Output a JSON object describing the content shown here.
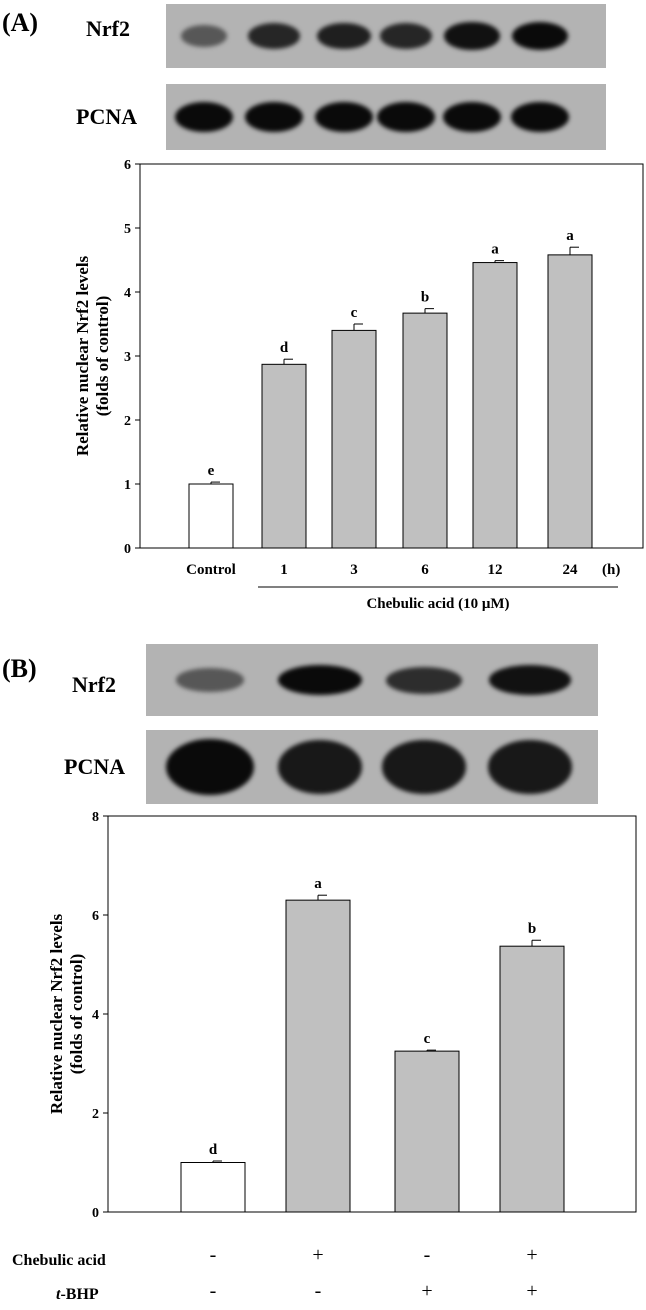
{
  "panel_a": {
    "label": "(A)",
    "blot_labels": [
      "Nrf2",
      "PCNA"
    ],
    "nrf2_band_intensity": [
      0.45,
      0.8,
      0.85,
      0.8,
      0.95,
      1.0
    ],
    "pcna_band_intensity": [
      1,
      1,
      1,
      1,
      1,
      1
    ],
    "group_label": "Chebulic acid (10 μM)",
    "unit_label": "(h)"
  },
  "panel_b": {
    "label": "(B)",
    "blot_labels": [
      "Nrf2",
      "PCNA"
    ],
    "nrf2_band_intensity": [
      0.45,
      1.0,
      0.75,
      0.95
    ],
    "pcna_band_intensity": [
      1,
      0.9,
      0.9,
      0.9
    ],
    "rows": [
      {
        "label": "Chebulic acid",
        "signs": [
          "-",
          "+",
          "-",
          "+"
        ]
      },
      {
        "label_italic": "t",
        "label": "-BHP",
        "signs": [
          "-",
          "-",
          "+",
          "+"
        ]
      }
    ]
  },
  "chart_data": [
    {
      "type": "bar",
      "categories": [
        "Control",
        "1",
        "3",
        "6",
        "12",
        "24"
      ],
      "values": [
        1.0,
        2.87,
        3.4,
        3.67,
        4.46,
        4.58
      ],
      "errors": [
        0.03,
        0.08,
        0.1,
        0.07,
        0.03,
        0.12
      ],
      "letters": [
        "e",
        "d",
        "c",
        "b",
        "a",
        "a"
      ],
      "bar_colors": [
        "#ffffff",
        "#c0c0c0",
        "#c0c0c0",
        "#c0c0c0",
        "#c0c0c0",
        "#c0c0c0"
      ],
      "ylabel": "Relative nuclear Nrf2 levels (folds of control)",
      "ylim": [
        0,
        6
      ],
      "yticks": [
        0,
        1,
        2,
        3,
        4,
        5,
        6
      ],
      "grid": false
    },
    {
      "type": "bar",
      "categories": [
        "",
        "",
        "",
        ""
      ],
      "values": [
        1.0,
        6.3,
        3.25,
        5.37
      ],
      "errors": [
        0.03,
        0.1,
        0.02,
        0.12
      ],
      "letters": [
        "d",
        "a",
        "c",
        "b"
      ],
      "bar_colors": [
        "#ffffff",
        "#c0c0c0",
        "#c0c0c0",
        "#c0c0c0"
      ],
      "ylabel": "Relative nuclear Nrf2 levels (folds of control)",
      "ylim": [
        0,
        8
      ],
      "yticks": [
        0,
        2,
        4,
        6,
        8
      ],
      "grid": false
    }
  ]
}
